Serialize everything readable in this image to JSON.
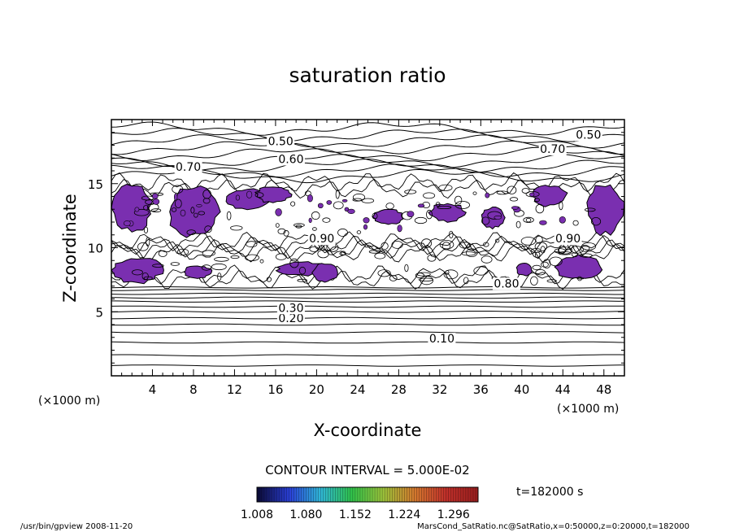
{
  "chart_data": {
    "type": "contour",
    "title": "saturation ratio",
    "xlabel": "X-coordinate",
    "ylabel": "Z-coordinate",
    "x_unit": "(×1000 m)",
    "z_unit": "(×1000 m)",
    "xlim": [
      0,
      50
    ],
    "ylim": [
      0,
      20
    ],
    "x_ticks": [
      4,
      8,
      12,
      16,
      20,
      24,
      28,
      32,
      36,
      40,
      44,
      48
    ],
    "y_ticks": [
      5,
      10,
      15
    ],
    "contour_interval_label": "CONTOUR INTERVAL = 5.000E-02",
    "time_label": "t=182000 s",
    "contour_labels": [
      {
        "text": "0.50",
        "x": 16.5,
        "z": 18.0
      },
      {
        "text": "0.60",
        "x": 17.5,
        "z": 16.6
      },
      {
        "text": "0.70",
        "x": 7.5,
        "z": 16.0
      },
      {
        "text": "0.50",
        "x": 46.5,
        "z": 18.5
      },
      {
        "text": "0.70",
        "x": 43.0,
        "z": 17.4
      },
      {
        "text": "0.90",
        "x": 20.5,
        "z": 10.4
      },
      {
        "text": "0.90",
        "x": 44.5,
        "z": 10.4
      },
      {
        "text": "0.80",
        "x": 38.5,
        "z": 6.9
      },
      {
        "text": "0.20",
        "x": 17.5,
        "z": 4.2
      },
      {
        "text": "0.30",
        "x": 17.5,
        "z": 5.0
      },
      {
        "text": "0.10",
        "x": 32.2,
        "z": 2.6
      }
    ],
    "colorbar": {
      "ticks": [
        "1.008",
        "1.080",
        "1.152",
        "1.224",
        "1.296"
      ],
      "min": 1.008,
      "max": 1.332,
      "colors": [
        "#0b0b3a",
        "#2a3fd6",
        "#2fb6d6",
        "#30c24a",
        "#9bc23a",
        "#d3792e",
        "#c0302a",
        "#9a1f1f"
      ]
    },
    "supersaturated_color": "#7a2fb0",
    "grid": false
  },
  "footer": {
    "left": "/usr/bin/gpview  2008-11-20",
    "right": "MarsCond_SatRatio.nc@SatRatio,x=0:50000,z=0:20000,t=182000"
  }
}
